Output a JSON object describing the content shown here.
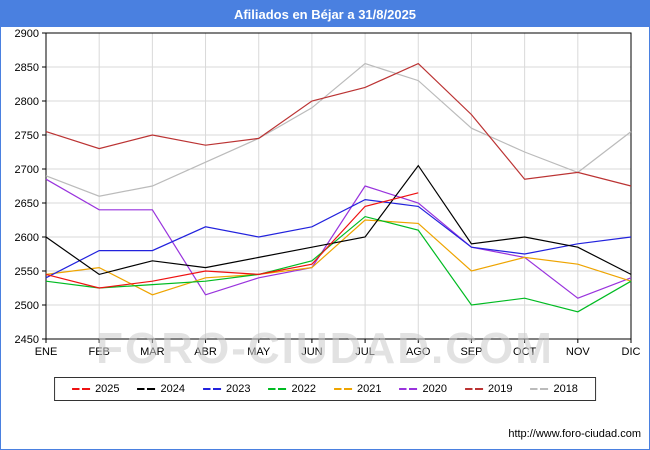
{
  "header": {
    "title": "Afiliados en Béjar a 31/8/2025"
  },
  "watermark": {
    "text": "FORO-CIUDAD.COM"
  },
  "footer": {
    "link_text": "http://www.foro-ciudad.com"
  },
  "colors": {
    "titlebar": "#4a80e0",
    "frame": "#4a80e0",
    "grid": "#d9d9d9",
    "plot_border": "#000000",
    "axis_text": "#000000",
    "watermark": "#cccccc"
  },
  "chart_data": {
    "type": "line",
    "title": "Afiliados en Béjar a 31/8/2025",
    "xlabel": "",
    "ylabel": "",
    "ylim": [
      2450,
      2900
    ],
    "ytick_step": 50,
    "grid": true,
    "legend_position": "bottom",
    "categories": [
      "ENE",
      "FEB",
      "MAR",
      "ABR",
      "MAY",
      "JUN",
      "JUL",
      "AGO",
      "SEP",
      "OCT",
      "NOV",
      "DIC"
    ],
    "series": [
      {
        "name": "2025",
        "color": "#ee1111",
        "values": [
          2545,
          2525,
          2535,
          2550,
          2545,
          2560,
          2645,
          2665
        ]
      },
      {
        "name": "2024",
        "color": "#000000",
        "values": [
          2600,
          2545,
          2565,
          2555,
          2570,
          2585,
          2600,
          2705,
          2590,
          2600,
          2585,
          2545
        ]
      },
      {
        "name": "2023",
        "color": "#2222dd",
        "values": [
          2540,
          2580,
          2580,
          2615,
          2600,
          2615,
          2655,
          2645,
          2585,
          2575,
          2590,
          2600
        ]
      },
      {
        "name": "2022",
        "color": "#00bb22",
        "values": [
          2535,
          2525,
          2530,
          2535,
          2545,
          2565,
          2630,
          2610,
          2500,
          2510,
          2490,
          2535
        ]
      },
      {
        "name": "2021",
        "color": "#eea400",
        "values": [
          2545,
          2555,
          2515,
          2540,
          2545,
          2555,
          2625,
          2620,
          2550,
          2570,
          2560,
          2535
        ]
      },
      {
        "name": "2020",
        "color": "#9933dd",
        "values": [
          2685,
          2640,
          2640,
          2515,
          2540,
          2555,
          2675,
          2650,
          2585,
          2570,
          2510,
          2540
        ]
      },
      {
        "name": "2019",
        "color": "#bb3333",
        "values": [
          2755,
          2730,
          2750,
          2735,
          2745,
          2800,
          2820,
          2855,
          2780,
          2685,
          2695,
          2675
        ]
      },
      {
        "name": "2018",
        "color": "#bbbbbb",
        "values": [
          2690,
          2660,
          2675,
          2710,
          2745,
          2790,
          2855,
          2830,
          2760,
          2725,
          2695,
          2755
        ]
      }
    ]
  }
}
